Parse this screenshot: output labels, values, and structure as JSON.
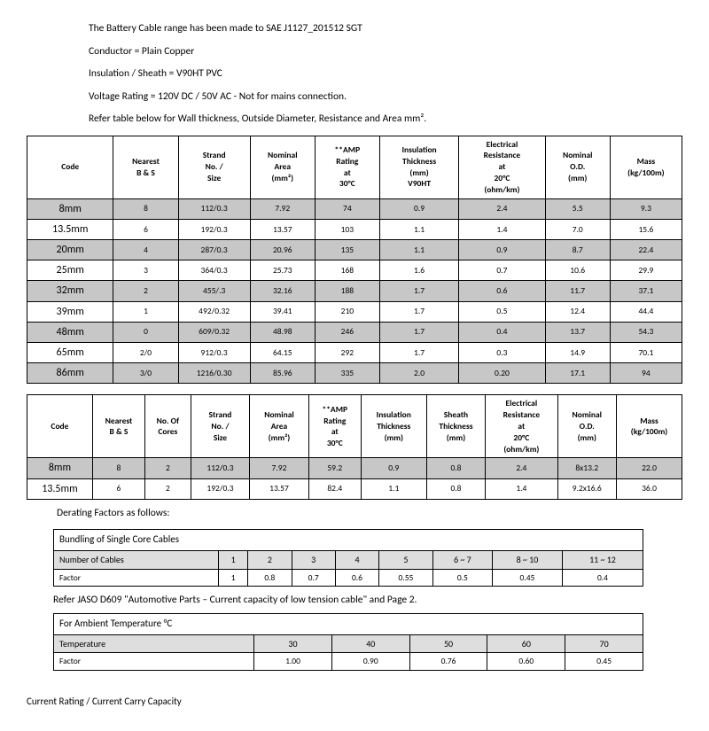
{
  "intro": {
    "l1": "The Battery Cable range has been made to SAE J1127_201512 SGT",
    "l2": "Conductor = Plain Copper",
    "l3": "Insulation / Sheath = V90HT PVC",
    "l4": "Voltage Rating = 120V DC / 50V AC - Not for mains connection.",
    "l5": "Refer table below for Wall thickness, Outside Diameter, Resistance and Area mm²."
  },
  "t1": {
    "headers": [
      "Code",
      "Nearest B & S",
      "Strand No. / Size",
      "Nominal Area (mm²)",
      "**AMP Rating at 30°C",
      "Insulation Thickness (mm) V90HT",
      "Electrical Resistance at 20°C (ohm/km)",
      "Nominal O.D. (mm)",
      "Mass (kg/100m)"
    ],
    "rows": [
      {
        "shade": true,
        "c": [
          "8mm",
          "8",
          "112/0.3",
          "7.92",
          "74",
          "0.9",
          "2.4",
          "5.5",
          "9.3"
        ]
      },
      {
        "shade": false,
        "c": [
          "13.5mm",
          "6",
          "192/0.3",
          "13.57",
          "103",
          "1.1",
          "1.4",
          "7.0",
          "15.6"
        ]
      },
      {
        "shade": true,
        "c": [
          "20mm",
          "4",
          "287/0.3",
          "20.96",
          "135",
          "1.1",
          "0.9",
          "8.7",
          "22.4"
        ]
      },
      {
        "shade": false,
        "c": [
          "25mm",
          "3",
          "364/0.3",
          "25.73",
          "168",
          "1.6",
          "0.7",
          "10.6",
          "29.9"
        ]
      },
      {
        "shade": true,
        "c": [
          "32mm",
          "2",
          "455/.3",
          "32.16",
          "188",
          "1.7",
          "0.6",
          "11.7",
          "37.1"
        ]
      },
      {
        "shade": false,
        "c": [
          "39mm",
          "1",
          "492/0.32",
          "39.41",
          "210",
          "1.7",
          "0.5",
          "12.4",
          "44.4"
        ]
      },
      {
        "shade": true,
        "c": [
          "48mm",
          "0",
          "609/0.32",
          "48.98",
          "246",
          "1.7",
          "0.4",
          "13.7",
          "54.3"
        ]
      },
      {
        "shade": false,
        "c": [
          "65mm",
          "2/0",
          "912/0.3",
          "64.15",
          "292",
          "1.7",
          "0.3",
          "14.9",
          "70.1"
        ]
      },
      {
        "shade": true,
        "c": [
          "86mm",
          "3/0",
          "1216/0.30",
          "85.96",
          "335",
          "2.0",
          "0.20",
          "17.1",
          "94"
        ]
      }
    ]
  },
  "t2": {
    "headers": [
      "Code",
      "Nearest B & S",
      "No. Of Cores",
      "Strand No. / Size",
      "Nominal Area (mm²)",
      "**AMP Rating at 30°C",
      "Insulation Thickness (mm)",
      "Sheath Thickness (mm)",
      "Electrical Resistance at 20°C (ohm/km)",
      "Nominal O.D. (mm)",
      "Mass (kg/100m)"
    ],
    "rows": [
      {
        "shade": true,
        "c": [
          "8mm",
          "8",
          "2",
          "112/0.3",
          "7.92",
          "59.2",
          "0.9",
          "0.8",
          "2.4",
          "8x13.2",
          "22.0"
        ]
      },
      {
        "shade": false,
        "c": [
          "13.5mm",
          "6",
          "2",
          "192/0.3",
          "13.57",
          "82.4",
          "1.1",
          "0.8",
          "1.4",
          "9.2x16.6",
          "36.0"
        ]
      }
    ]
  },
  "derating_hdr": "Derating Factors as follows:",
  "bundling": {
    "title": "Bundling of Single Core Cables",
    "lbl": [
      "Number of Cables",
      "1",
      "2",
      "3",
      "4",
      "5",
      "6 ~ 7",
      "8 ~ 10",
      "11 ~ 12"
    ],
    "val": [
      "Factor",
      "1",
      "0.8",
      "0.7",
      "0.6",
      "0.55",
      "0.5",
      "0.45",
      "0.4"
    ]
  },
  "refer": "Refer JASO D609 \"Automotive Parts – Current capacity of low tension cable\" and Page 2.",
  "ambient": {
    "title": "For Ambient Temperature °C",
    "lbl": [
      "Temperature",
      "30",
      "40",
      "50",
      "60",
      "70"
    ],
    "val": [
      "Factor",
      "1.00",
      "0.90",
      "0.76",
      "0.60",
      "0.45"
    ]
  },
  "footer": "Current Rating / Current Carry Capacity"
}
